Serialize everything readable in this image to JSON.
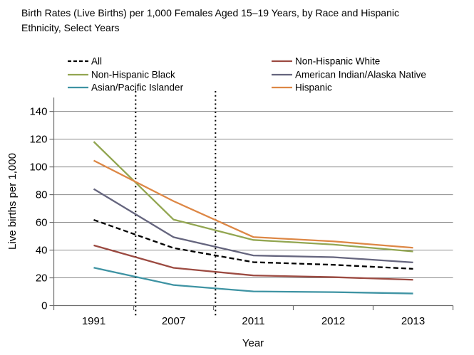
{
  "title": "Birth Rates (Live Births) per 1,000 Females Aged 15–19 Years, by Race and Hispanic Ethnicity, Select Years",
  "chart_data": {
    "type": "line",
    "title": "Birth Rates (Live Births) per 1,000 Females Aged 15–19 Years, by Race and Hispanic Ethnicity, Select Years",
    "categories": [
      "1991",
      "2007",
      "2011",
      "2012",
      "2013"
    ],
    "series": [
      {
        "name": "All",
        "color": "#000000",
        "dash": "7 4",
        "values": [
          61.8,
          41.5,
          31.3,
          29.4,
          26.5
        ]
      },
      {
        "name": "Non-Hispanic White",
        "color": "#9C4A41",
        "dash": "",
        "values": [
          43.4,
          27.2,
          21.7,
          20.5,
          18.6
        ]
      },
      {
        "name": "Non-Hispanic Black",
        "color": "#92A651",
        "dash": "",
        "values": [
          118.2,
          62.0,
          47.3,
          44.0,
          39.0
        ]
      },
      {
        "name": "American Indian/Alaska Native",
        "color": "#65657E",
        "dash": "",
        "values": [
          84.1,
          49.3,
          36.1,
          34.9,
          31.1
        ]
      },
      {
        "name": "Asian/Pacific Islander",
        "color": "#3E93A3",
        "dash": "",
        "values": [
          27.3,
          14.8,
          10.2,
          9.7,
          8.7
        ]
      },
      {
        "name": "Hispanic",
        "color": "#DD8745",
        "dash": "",
        "values": [
          104.6,
          75.3,
          49.4,
          46.3,
          41.7
        ]
      }
    ],
    "xlabel": "Year",
    "ylabel": "Live births per 1,000",
    "ylim": [
      0,
      150
    ],
    "yticks": [
      0,
      20,
      40,
      60,
      80,
      100,
      120,
      140
    ],
    "grid": true,
    "legend_position": "top",
    "legend_columns": [
      [
        "All",
        "Non-Hispanic Black",
        "Asian/Pacific Islander"
      ],
      [
        "Non-Hispanic White",
        "American Indian/Alaska Native",
        "Hispanic"
      ]
    ],
    "reference_lines": {
      "style": "vertical-dotted",
      "between_categories": [
        [
          "1991",
          "2007"
        ],
        [
          "2007",
          "2011"
        ]
      ]
    }
  }
}
